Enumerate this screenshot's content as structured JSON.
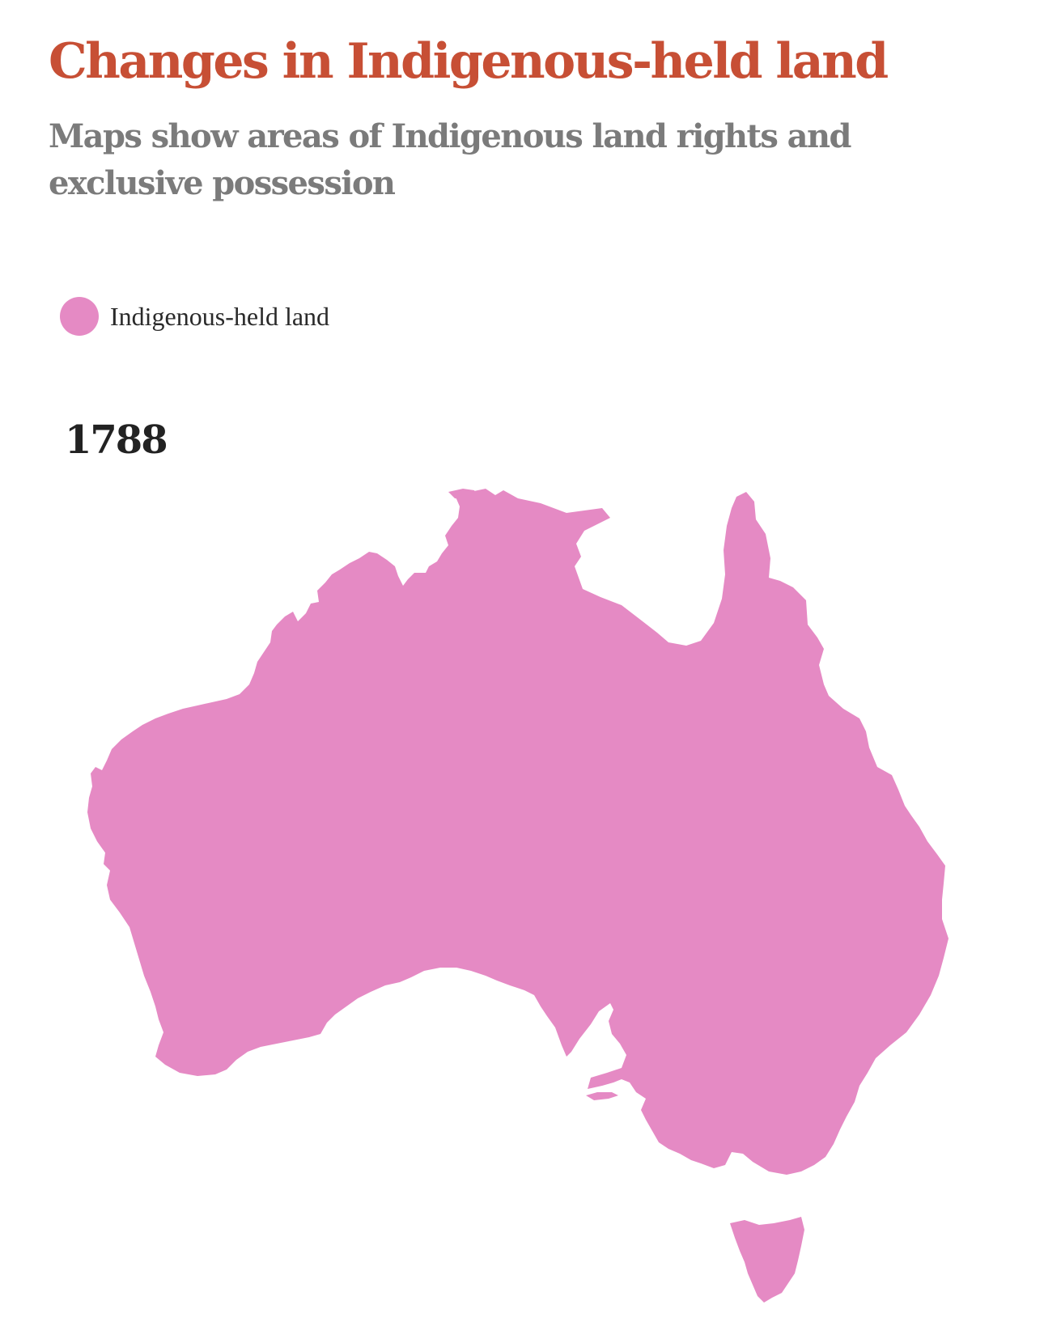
{
  "title": "Changes in Indigenous-held land",
  "subtitle": "Maps show areas of Indigenous land rights and exclusive possession",
  "legend": {
    "items": [
      {
        "label": "Indigenous-held land",
        "color": "#e58ac4"
      }
    ]
  },
  "map": {
    "year": "1788",
    "fill_color": "#e58ac4",
    "regions": [
      "mainland-australia",
      "tasmania"
    ]
  },
  "colors": {
    "title": "#c74f35",
    "subtitle": "#7b7b7b",
    "land": "#e58ac4"
  }
}
